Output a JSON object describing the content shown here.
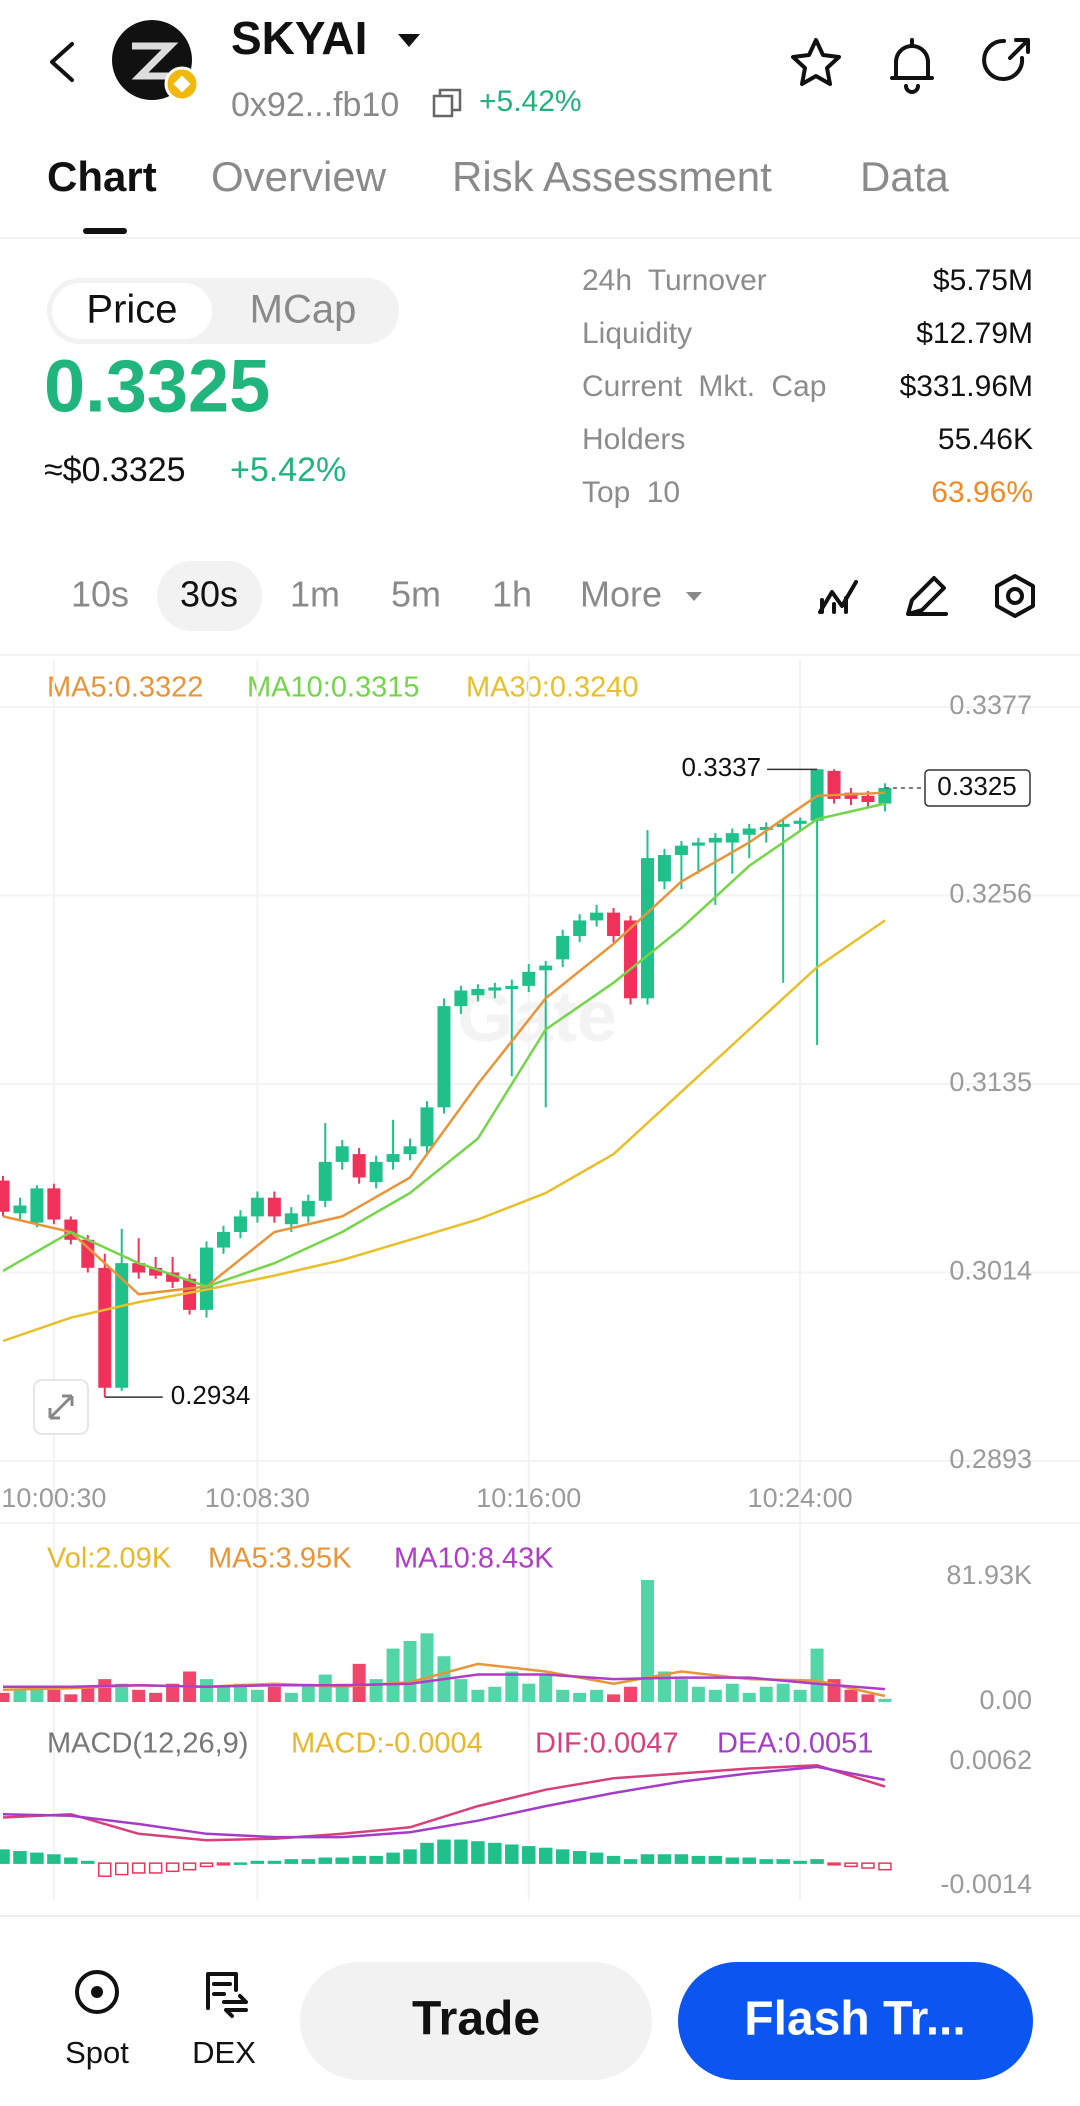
{
  "header": {
    "title": "SKYAI",
    "address": "0x92...fb10",
    "change": "+5.42%"
  },
  "tabs": [
    "Chart",
    "Overview",
    "Risk Assessment",
    "Data"
  ],
  "toggle": [
    "Price",
    "MCap"
  ],
  "price": {
    "value": "0.3325",
    "usd": "≈$0.3325",
    "change": "+5.42%"
  },
  "stats": [
    [
      "24h Turnover",
      "$5.75M"
    ],
    [
      "Liquidity",
      "$12.79M"
    ],
    [
      "Current Mkt. Cap",
      "$331.96M"
    ],
    [
      "Holders",
      "55.46K"
    ],
    [
      "Top 10",
      "63.96%"
    ]
  ],
  "timeframes": [
    "10s",
    "30s",
    "1m",
    "5m",
    "1h",
    "More"
  ],
  "watermark": "Gate",
  "chart": {
    "type": "candlestick",
    "up_color": "#1fc08a",
    "down_color": "#f0325a",
    "ylim": [
      0.2893,
      0.3377
    ],
    "yticks": [
      0.3377,
      0.3256,
      0.3135,
      0.3014,
      0.2893
    ],
    "grid": true,
    "xticks": [
      {
        "value": 3,
        "label": "10:00:30"
      },
      {
        "value": 15,
        "label": "10:08:30"
      },
      {
        "value": 31,
        "label": "10:16:00"
      },
      {
        "value": 47,
        "label": "10:24:00"
      }
    ],
    "candles": [
      [
        0.3073,
        0.3076,
        0.305,
        0.3053
      ],
      [
        0.3052,
        0.3062,
        0.3048,
        0.3057
      ],
      [
        0.3046,
        0.307,
        0.3043,
        0.3068
      ],
      [
        0.3068,
        0.3071,
        0.3045,
        0.3048
      ],
      [
        0.3048,
        0.305,
        0.3032,
        0.3035
      ],
      [
        0.3035,
        0.3038,
        0.3014,
        0.3017
      ],
      [
        0.3017,
        0.3026,
        0.2934,
        0.294
      ],
      [
        0.294,
        0.3042,
        0.2938,
        0.302
      ],
      [
        0.302,
        0.3036,
        0.301,
        0.3014
      ],
      [
        0.3017,
        0.3024,
        0.301,
        0.3012
      ],
      [
        0.3014,
        0.3024,
        0.3004,
        0.3008
      ],
      [
        0.301,
        0.3013,
        0.2987,
        0.299
      ],
      [
        0.299,
        0.3034,
        0.2985,
        0.303
      ],
      [
        0.303,
        0.3044,
        0.3026,
        0.304
      ],
      [
        0.304,
        0.3054,
        0.3036,
        0.305
      ],
      [
        0.305,
        0.3066,
        0.3046,
        0.3062
      ],
      [
        0.3062,
        0.3066,
        0.3046,
        0.305
      ],
      [
        0.3045,
        0.3056,
        0.304,
        0.3052
      ],
      [
        0.305,
        0.3064,
        0.3046,
        0.306
      ],
      [
        0.306,
        0.311,
        0.3056,
        0.3085
      ],
      [
        0.3085,
        0.3099,
        0.308,
        0.3095
      ],
      [
        0.309,
        0.3094,
        0.3071,
        0.3075
      ],
      [
        0.3072,
        0.3089,
        0.3068,
        0.3085
      ],
      [
        0.3085,
        0.3112,
        0.308,
        0.309
      ],
      [
        0.309,
        0.31,
        0.3086,
        0.3095
      ],
      [
        0.3095,
        0.3124,
        0.309,
        0.312
      ],
      [
        0.312,
        0.319,
        0.3116,
        0.3185
      ],
      [
        0.3185,
        0.3198,
        0.318,
        0.3195
      ],
      [
        0.3192,
        0.3199,
        0.3188,
        0.3196
      ],
      [
        0.3195,
        0.32,
        0.319,
        0.3197
      ],
      [
        0.3196,
        0.3202,
        0.314,
        0.3198
      ],
      [
        0.3198,
        0.3212,
        0.3194,
        0.3207
      ],
      [
        0.3208,
        0.3214,
        0.312,
        0.3211
      ],
      [
        0.3215,
        0.3234,
        0.321,
        0.323
      ],
      [
        0.323,
        0.3244,
        0.3226,
        0.324
      ],
      [
        0.324,
        0.325,
        0.3236,
        0.3245
      ],
      [
        0.3245,
        0.3248,
        0.3226,
        0.323
      ],
      [
        0.324,
        0.3243,
        0.3186,
        0.319
      ],
      [
        0.319,
        0.3298,
        0.3186,
        0.328
      ],
      [
        0.3265,
        0.3286,
        0.326,
        0.3282
      ],
      [
        0.3282,
        0.3291,
        0.326,
        0.3288
      ],
      [
        0.3288,
        0.3293,
        0.327,
        0.329
      ],
      [
        0.329,
        0.3296,
        0.325,
        0.3293
      ],
      [
        0.329,
        0.3299,
        0.327,
        0.3296
      ],
      [
        0.3295,
        0.3302,
        0.328,
        0.3299
      ],
      [
        0.3298,
        0.3303,
        0.329,
        0.33
      ],
      [
        0.33,
        0.3305,
        0.32,
        0.3302
      ],
      [
        0.3302,
        0.3306,
        0.3298,
        0.3304
      ],
      [
        0.3304,
        0.3337,
        0.316,
        0.3337
      ],
      [
        0.3336,
        0.3337,
        0.3315,
        0.3318
      ],
      [
        0.3322,
        0.3325,
        0.3314,
        0.3318
      ],
      [
        0.332,
        0.3323,
        0.3312,
        0.3316
      ],
      [
        0.3315,
        0.3328,
        0.331,
        0.3325
      ]
    ],
    "series": [
      {
        "label": "MA5:0.3322",
        "color": "#e8953a",
        "x": [
          0,
          4,
          8,
          12,
          16,
          20,
          24,
          28,
          32,
          36,
          40,
          44,
          48,
          52
        ],
        "values": [
          0.305,
          0.304,
          0.3,
          0.3005,
          0.304,
          0.305,
          0.3075,
          0.3135,
          0.319,
          0.3225,
          0.3265,
          0.329,
          0.332,
          0.3322
        ]
      },
      {
        "label": "MA10:0.3315",
        "color": "#74d44a",
        "x": [
          0,
          4,
          8,
          12,
          16,
          20,
          24,
          28,
          32,
          36,
          40,
          44,
          48,
          52
        ],
        "values": [
          0.3015,
          0.304,
          0.302,
          0.3005,
          0.302,
          0.304,
          0.3065,
          0.31,
          0.317,
          0.32,
          0.3235,
          0.3275,
          0.3305,
          0.3315
        ]
      },
      {
        "label": "MA30:0.3240",
        "color": "#e8bf2a",
        "x": [
          0,
          4,
          8,
          12,
          16,
          20,
          24,
          28,
          32,
          36,
          40,
          44,
          48,
          52
        ],
        "values": [
          0.297,
          0.2985,
          0.2995,
          0.3003,
          0.3012,
          0.3022,
          0.3035,
          0.3048,
          0.3065,
          0.309,
          0.313,
          0.317,
          0.321,
          0.324
        ]
      }
    ],
    "high_label": {
      "index": 48,
      "value": 0.3337
    },
    "low_label": {
      "index": 6,
      "value": 0.2934
    },
    "last": 0.3325
  },
  "volume": {
    "ylim": [
      0,
      81.93
    ],
    "yticks": [
      {
        "value": 81.93,
        "label": "81.93K"
      },
      {
        "value": 0,
        "label": "0.00"
      }
    ],
    "label": "Vol:2.09K",
    "label_color": "#e8b82a",
    "values": [
      6,
      8,
      10,
      8,
      5,
      9,
      15,
      12,
      8,
      6,
      12,
      20,
      15,
      10,
      12,
      8,
      10,
      6,
      12,
      18,
      12,
      25,
      15,
      35,
      40,
      45,
      30,
      15,
      8,
      10,
      20,
      12,
      18,
      8,
      6,
      8,
      5,
      10,
      80,
      20,
      15,
      10,
      8,
      12,
      6,
      10,
      12,
      8,
      35,
      15,
      8,
      5,
      2.09
    ],
    "series": [
      {
        "label": "MA5:3.95K",
        "color": "#e8953a",
        "x": [
          0,
          4,
          8,
          12,
          16,
          20,
          24,
          28,
          32,
          36,
          40,
          44,
          48,
          52
        ],
        "values": [
          8,
          9,
          11,
          10,
          12,
          10,
          13,
          25,
          20,
          12,
          20,
          15,
          14,
          3.95
        ]
      },
      {
        "label": "MA10:8.43K",
        "color": "#b03cc8",
        "x": [
          0,
          4,
          8,
          12,
          16,
          20,
          24,
          28,
          32,
          36,
          40,
          44,
          48,
          52
        ],
        "values": [
          10,
          10,
          11,
          10,
          11,
          11,
          12,
          18,
          18,
          15,
          16,
          16,
          12,
          8.43
        ]
      }
    ]
  },
  "macd": {
    "title": "MACD(12,26,9)",
    "ylim": [
      -0.0014,
      0.0062
    ],
    "yticks": [
      0.0062,
      -0.0014
    ],
    "label": "MACD:-0.0004",
    "label_color": "#e8b82a",
    "values": [
      0.0008,
      0.0007,
      0.0006,
      0.0005,
      0.0003,
      0.0001,
      -0.0008,
      -0.0007,
      -0.0006,
      -0.0006,
      -0.0005,
      -0.0004,
      -0.0002,
      -0.0001,
      0,
      0.0001,
      0.0001,
      0.0002,
      0.0002,
      0.0003,
      0.0003,
      0.0004,
      0.0004,
      0.0006,
      0.0008,
      0.0012,
      0.0014,
      0.0014,
      0.0013,
      0.0012,
      0.0011,
      0.001,
      0.0009,
      0.0008,
      0.0007,
      0.0006,
      0.0004,
      0.0002,
      0.0005,
      0.0005,
      0.0005,
      0.0004,
      0.0004,
      0.0003,
      0.0003,
      0.0002,
      0.0002,
      0.0001,
      0.0002,
      -0.0001,
      -0.0002,
      -0.0003,
      -0.0004
    ],
    "series": [
      {
        "label": "DIF:0.0047",
        "color": "#d8407a",
        "x": [
          0,
          4,
          8,
          12,
          16,
          20,
          24,
          28,
          32,
          36,
          40,
          44,
          48,
          52
        ],
        "values": [
          0.0028,
          0.003,
          0.0018,
          0.0014,
          0.0015,
          0.0018,
          0.0022,
          0.0035,
          0.0045,
          0.0052,
          0.0055,
          0.0058,
          0.006,
          0.0047
        ]
      },
      {
        "label": "DEA:0.0051",
        "color": "#a43cc8",
        "x": [
          0,
          4,
          8,
          12,
          16,
          20,
          24,
          28,
          32,
          36,
          40,
          44,
          48,
          52
        ],
        "values": [
          0.003,
          0.0029,
          0.0024,
          0.0018,
          0.0016,
          0.0016,
          0.0019,
          0.0026,
          0.0035,
          0.0043,
          0.005,
          0.0055,
          0.0059,
          0.0051
        ]
      }
    ]
  },
  "bottom": {
    "spot": "Spot",
    "dex": "DEX",
    "trade": "Trade",
    "flash": "Flash Tr..."
  }
}
